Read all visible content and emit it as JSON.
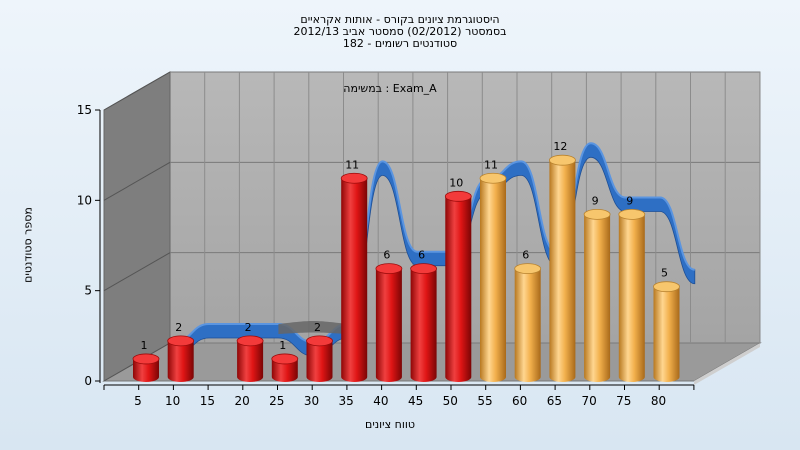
{
  "chart_data": {
    "type": "bar",
    "title_lines": [
      "היסטוגרמת ציונים בקורס - אותות אקראיים",
      "בסמסטר  (02/2012)  סמסטר אביב 2012/13",
      "סטודנטים רשומים - 182"
    ],
    "inner_label": "במשימה : Exam_A",
    "xlabel": "טווח ציונים",
    "ylabel": "מספר סטודנטים",
    "ylim": [
      0,
      15
    ],
    "yticks": [
      0,
      5,
      10,
      15
    ],
    "x_ticks": [
      "5",
      "10",
      "15",
      "20",
      "25",
      "30",
      "35",
      "40",
      "45",
      "50",
      "55",
      "60",
      "65",
      "70",
      "75",
      "80"
    ],
    "categories": [
      "5",
      "10",
      "20",
      "25",
      "30",
      "35",
      "40",
      "45",
      "50",
      "55",
      "60",
      "65",
      "70",
      "75",
      "80"
    ],
    "values": [
      1,
      2,
      2,
      1,
      2,
      11,
      6,
      6,
      10,
      11,
      6,
      12,
      9,
      9,
      5
    ],
    "bar_colors": [
      "#e21b1b",
      "#e21b1b",
      "#e21b1b",
      "#e21b1b",
      "#e21b1b",
      "#e21b1b",
      "#e21b1b",
      "#e21b1b",
      "#e21b1b",
      "#f0b24a",
      "#f0b24a",
      "#f0b24a",
      "#f0b24a",
      "#f0b24a",
      "#f0b24a"
    ],
    "ribbon_color": "#2e6fc4",
    "ribbon_gray_color": "#666666",
    "grid": true,
    "legend": "none",
    "view": "3d"
  }
}
